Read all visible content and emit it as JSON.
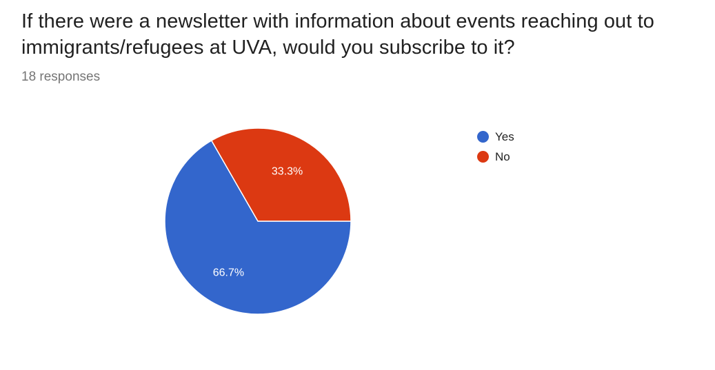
{
  "header": {
    "title": "If there were a newsletter with information about events reaching out to immigrants/refugees at UVA, would you subscribe to it?",
    "responses": "18 responses"
  },
  "chart_data": {
    "type": "pie",
    "slices": [
      {
        "label": "Yes",
        "value": 66.7,
        "display": "66.7%",
        "color": "#3366cc"
      },
      {
        "label": "No",
        "value": 33.3,
        "display": "33.3%",
        "color": "#dc3912"
      }
    ],
    "legend_position": "right"
  }
}
